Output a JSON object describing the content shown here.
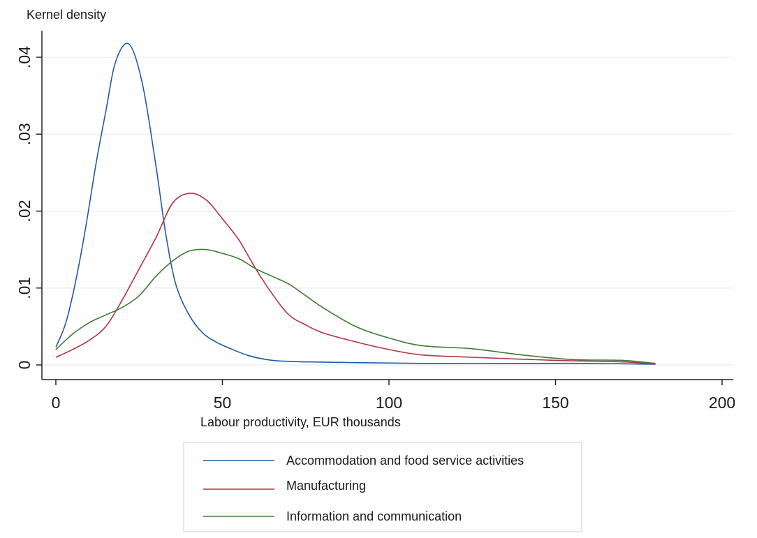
{
  "chart_data": {
    "type": "line",
    "title": "",
    "xlabel": "Labour productivity, EUR thousands",
    "ylabel": "Kernel density",
    "xlim": [
      0,
      200
    ],
    "ylim": [
      0,
      0.04
    ],
    "x_ticks": [
      0,
      50,
      100,
      150,
      200
    ],
    "x_tick_labels": [
      "0",
      "50",
      "100",
      "150",
      "200"
    ],
    "y_ticks": [
      0,
      0.01,
      0.02,
      0.03,
      0.04
    ],
    "y_tick_labels": [
      "0",
      ".01",
      ".02",
      ".03",
      ".04"
    ],
    "grid": true,
    "legend_position": "bottom",
    "series": [
      {
        "name": "Accommodation and food service activities",
        "color": "#1f5aa6",
        "points": [
          [
            0,
            0.0023
          ],
          [
            3,
            0.0055
          ],
          [
            6,
            0.011
          ],
          [
            9,
            0.018
          ],
          [
            12,
            0.026
          ],
          [
            15,
            0.033
          ],
          [
            18,
            0.0395
          ],
          [
            22,
            0.0417
          ],
          [
            26,
            0.0365
          ],
          [
            30,
            0.026
          ],
          [
            33,
            0.017
          ],
          [
            36,
            0.0105
          ],
          [
            40,
            0.0065
          ],
          [
            44,
            0.0042
          ],
          [
            48,
            0.003
          ],
          [
            52,
            0.0022
          ],
          [
            58,
            0.0012
          ],
          [
            65,
            0.0006
          ],
          [
            75,
            0.0004
          ],
          [
            90,
            0.0003
          ],
          [
            110,
            0.0002
          ],
          [
            140,
            0.0002
          ],
          [
            160,
            0.0002
          ],
          [
            180,
            0.0001
          ]
        ]
      },
      {
        "name": "Manufacturing",
        "color": "#b3333f",
        "points": [
          [
            0,
            0.001
          ],
          [
            5,
            0.002
          ],
          [
            10,
            0.0032
          ],
          [
            15,
            0.005
          ],
          [
            20,
            0.0085
          ],
          [
            25,
            0.0125
          ],
          [
            30,
            0.0165
          ],
          [
            35,
            0.021
          ],
          [
            40,
            0.0223
          ],
          [
            45,
            0.0215
          ],
          [
            50,
            0.019
          ],
          [
            55,
            0.0162
          ],
          [
            60,
            0.0125
          ],
          [
            65,
            0.0092
          ],
          [
            70,
            0.0065
          ],
          [
            75,
            0.0052
          ],
          [
            80,
            0.0042
          ],
          [
            90,
            0.003
          ],
          [
            100,
            0.002
          ],
          [
            110,
            0.0013
          ],
          [
            125,
            0.001
          ],
          [
            150,
            0.0006
          ],
          [
            170,
            0.0004
          ],
          [
            180,
            0.0001
          ]
        ]
      },
      {
        "name": "Information and communication",
        "color": "#3e7b33",
        "points": [
          [
            0,
            0.002
          ],
          [
            5,
            0.004
          ],
          [
            10,
            0.0055
          ],
          [
            15,
            0.0065
          ],
          [
            20,
            0.0075
          ],
          [
            25,
            0.009
          ],
          [
            30,
            0.0115
          ],
          [
            35,
            0.0135
          ],
          [
            40,
            0.0148
          ],
          [
            45,
            0.015
          ],
          [
            50,
            0.0145
          ],
          [
            55,
            0.0138
          ],
          [
            60,
            0.0125
          ],
          [
            65,
            0.0115
          ],
          [
            70,
            0.0105
          ],
          [
            75,
            0.009
          ],
          [
            80,
            0.0075
          ],
          [
            90,
            0.005
          ],
          [
            100,
            0.0035
          ],
          [
            110,
            0.0025
          ],
          [
            125,
            0.0021
          ],
          [
            140,
            0.0013
          ],
          [
            155,
            0.0007
          ],
          [
            170,
            0.0006
          ],
          [
            180,
            0.0002
          ]
        ]
      }
    ]
  }
}
